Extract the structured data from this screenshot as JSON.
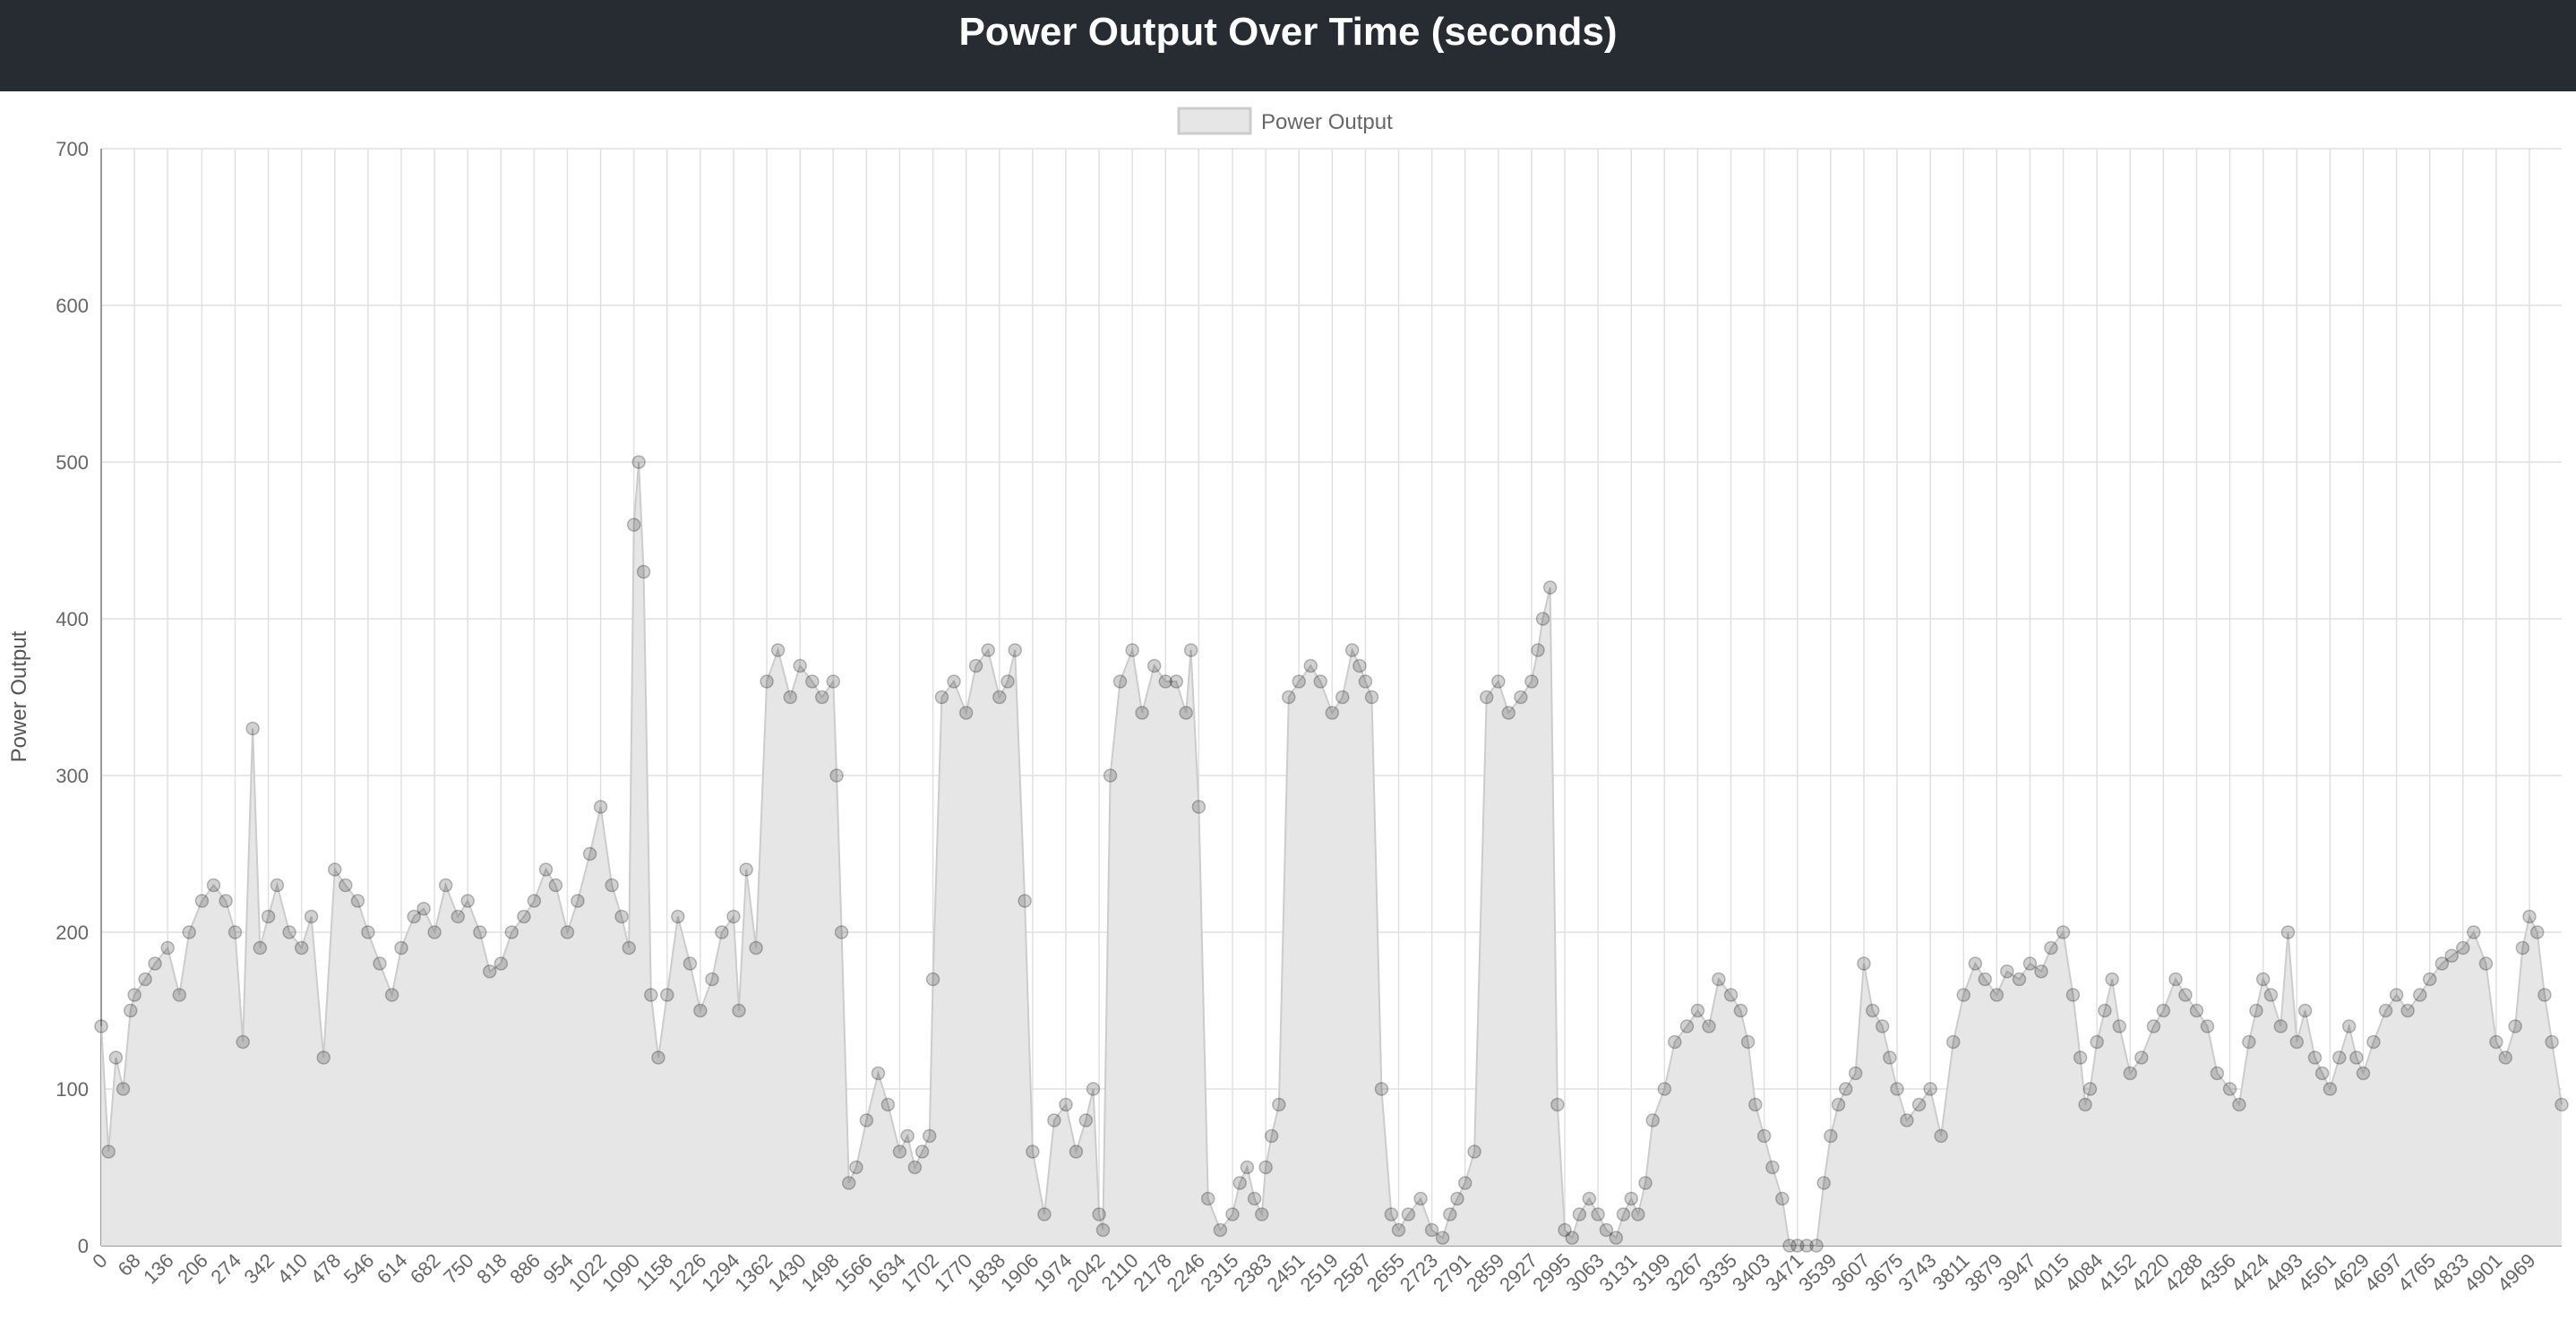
{
  "header": {
    "title": "Power Output Over Time (seconds)"
  },
  "colors": {
    "header_bg": "#272b32",
    "area_fill": "#e6e6e6",
    "line": "#cccccc",
    "point": "rgba(0,0,0,0.18)",
    "grid": "#e0e0e0"
  },
  "chart_data": {
    "type": "line",
    "title": "Power Output Over Time (seconds)",
    "xlabel": "",
    "ylabel": "Power Output",
    "ylim": [
      0,
      700
    ],
    "y_ticks": [
      0,
      100,
      200,
      300,
      400,
      500,
      600,
      700
    ],
    "xlim": [
      0,
      5035
    ],
    "x_ticks": [
      0,
      68,
      136,
      206,
      274,
      342,
      410,
      478,
      546,
      614,
      682,
      750,
      818,
      886,
      954,
      1022,
      1090,
      1158,
      1226,
      1294,
      1362,
      1430,
      1498,
      1566,
      1634,
      1702,
      1770,
      1838,
      1906,
      1974,
      2042,
      2110,
      2178,
      2246,
      2315,
      2383,
      2451,
      2519,
      2587,
      2655,
      2723,
      2791,
      2859,
      2927,
      2995,
      3063,
      3131,
      3199,
      3267,
      3335,
      3403,
      3471,
      3539,
      3607,
      3675,
      3743,
      3811,
      3879,
      3947,
      4015,
      4084,
      4152,
      4220,
      4288,
      4356,
      4424,
      4493,
      4561,
      4629,
      4697,
      4765,
      4833,
      4901,
      4969
    ],
    "grid": true,
    "legend": {
      "position": "top-center"
    },
    "series": [
      {
        "name": "Power Output",
        "x": [
          0,
          15,
          30,
          45,
          60,
          68,
          90,
          110,
          136,
          160,
          180,
          206,
          230,
          255,
          274,
          290,
          310,
          325,
          342,
          360,
          385,
          410,
          430,
          455,
          478,
          500,
          525,
          546,
          570,
          595,
          614,
          640,
          660,
          682,
          705,
          730,
          750,
          775,
          795,
          818,
          840,
          865,
          886,
          910,
          930,
          954,
          975,
          1000,
          1022,
          1045,
          1065,
          1080,
          1090,
          1100,
          1110,
          1125,
          1140,
          1158,
          1180,
          1205,
          1226,
          1250,
          1270,
          1294,
          1305,
          1320,
          1340,
          1362,
          1385,
          1410,
          1430,
          1455,
          1475,
          1498,
          1505,
          1515,
          1530,
          1545,
          1566,
          1590,
          1610,
          1634,
          1650,
          1665,
          1680,
          1695,
          1702,
          1720,
          1745,
          1770,
          1790,
          1815,
          1838,
          1855,
          1870,
          1890,
          1906,
          1930,
          1950,
          1974,
          1995,
          2015,
          2030,
          2042,
          2050,
          2065,
          2085,
          2110,
          2130,
          2155,
          2178,
          2200,
          2220,
          2230,
          2246,
          2265,
          2290,
          2315,
          2330,
          2345,
          2360,
          2375,
          2383,
          2395,
          2410,
          2430,
          2451,
          2475,
          2495,
          2519,
          2540,
          2560,
          2575,
          2587,
          2600,
          2620,
          2640,
          2655,
          2675,
          2700,
          2723,
          2745,
          2760,
          2775,
          2791,
          2810,
          2835,
          2859,
          2880,
          2905,
          2927,
          2940,
          2950,
          2965,
          2980,
          2995,
          3010,
          3025,
          3045,
          3063,
          3080,
          3100,
          3115,
          3131,
          3145,
          3160,
          3175,
          3199,
          3220,
          3245,
          3267,
          3290,
          3310,
          3335,
          3355,
          3370,
          3385,
          3403,
          3420,
          3440,
          3455,
          3471,
          3490,
          3510,
          3525,
          3539,
          3555,
          3570,
          3590,
          3607,
          3625,
          3645,
          3660,
          3675,
          3695,
          3720,
          3743,
          3765,
          3790,
          3811,
          3835,
          3855,
          3879,
          3900,
          3925,
          3947,
          3970,
          3990,
          4015,
          4035,
          4050,
          4060,
          4070,
          4084,
          4100,
          4115,
          4130,
          4152,
          4175,
          4200,
          4220,
          4245,
          4265,
          4288,
          4310,
          4330,
          4356,
          4375,
          4395,
          4410,
          4424,
          4440,
          4460,
          4475,
          4493,
          4510,
          4530,
          4545,
          4561,
          4580,
          4600,
          4615,
          4629,
          4650,
          4675,
          4697,
          4720,
          4745,
          4765,
          4790,
          4810,
          4833,
          4855,
          4880,
          4901,
          4920,
          4940,
          4955,
          4969,
          4985,
          5000,
          5015,
          5035
        ],
        "values": [
          140,
          60,
          120,
          100,
          150,
          160,
          170,
          180,
          190,
          160,
          200,
          220,
          230,
          220,
          200,
          130,
          330,
          190,
          210,
          230,
          200,
          190,
          210,
          120,
          240,
          230,
          220,
          200,
          180,
          160,
          190,
          210,
          215,
          200,
          230,
          210,
          220,
          200,
          175,
          180,
          200,
          210,
          220,
          240,
          230,
          200,
          220,
          250,
          280,
          230,
          210,
          190,
          460,
          500,
          430,
          160,
          120,
          160,
          210,
          180,
          150,
          170,
          200,
          210,
          150,
          240,
          190,
          360,
          380,
          350,
          370,
          360,
          350,
          360,
          300,
          200,
          40,
          50,
          80,
          110,
          90,
          60,
          70,
          50,
          60,
          70,
          170,
          350,
          360,
          340,
          370,
          380,
          350,
          360,
          380,
          220,
          60,
          20,
          80,
          90,
          60,
          80,
          100,
          20,
          10,
          300,
          360,
          380,
          340,
          370,
          360,
          360,
          340,
          380,
          280,
          30,
          10,
          20,
          40,
          50,
          30,
          20,
          50,
          70,
          90,
          350,
          360,
          370,
          360,
          340,
          350,
          380,
          370,
          360,
          350,
          100,
          20,
          10,
          20,
          30,
          10,
          5,
          20,
          30,
          40,
          60,
          350,
          360,
          340,
          350,
          360,
          380,
          400,
          420,
          90,
          10,
          5,
          20,
          30,
          20,
          10,
          5,
          20,
          30,
          20,
          40,
          80,
          100,
          130,
          140,
          150,
          140,
          170,
          160,
          150,
          130,
          90,
          70,
          50,
          30,
          0,
          0,
          0,
          0,
          40,
          70,
          90,
          100,
          110,
          180,
          150,
          140,
          120,
          100,
          80,
          90,
          100,
          70,
          130,
          160,
          180,
          170,
          160,
          175,
          170,
          180,
          175,
          190,
          200,
          160,
          120,
          90,
          100,
          130,
          150,
          170,
          140,
          110,
          120,
          140,
          150,
          170,
          160,
          150,
          140,
          110,
          100,
          90,
          130,
          150,
          170,
          160,
          140,
          200,
          130,
          150,
          120,
          110,
          100,
          120,
          140,
          120,
          110,
          130,
          150,
          160,
          150,
          160,
          170,
          180,
          185,
          190,
          200,
          180,
          130,
          120,
          140,
          190,
          210,
          200,
          160,
          130,
          90
        ]
      }
    ]
  }
}
